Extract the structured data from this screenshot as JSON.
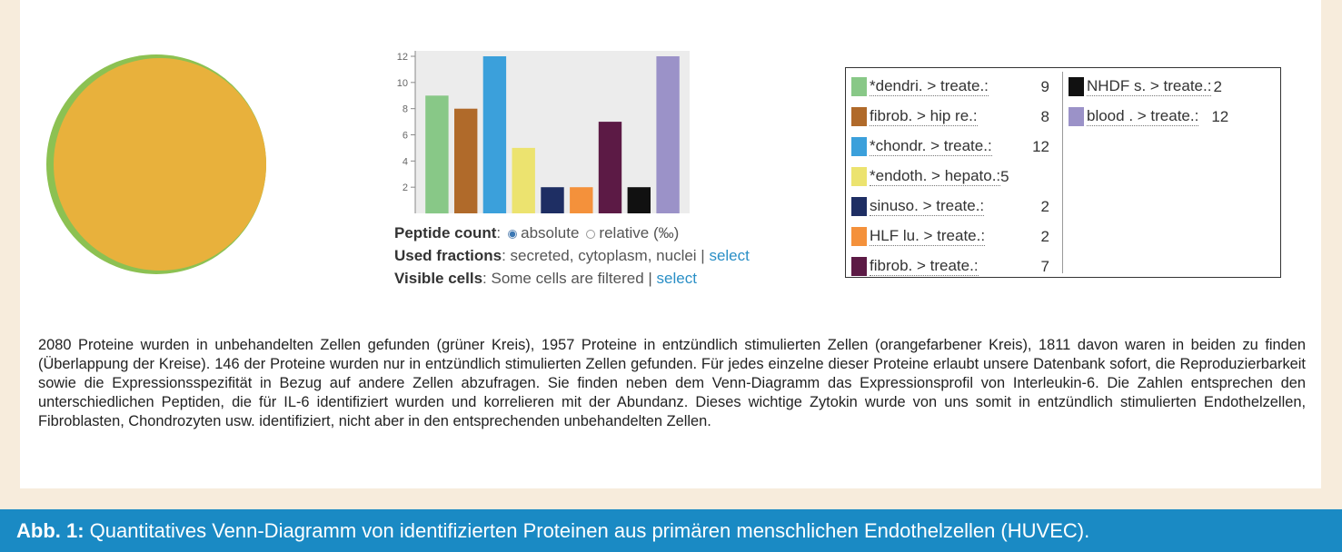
{
  "venn": {
    "green_color": "#8cc152",
    "orange_color": "#e8b13c"
  },
  "chart_data": {
    "type": "bar",
    "categories": [
      "*dendri. > treate.",
      "fibrob. > hip re.",
      "*chondr. > treate.",
      "*endoth. > hepato.",
      "sinuso. > treate.",
      "HLF lu. > treate.",
      "fibrob. > treate.",
      "NHDF s. > treate.",
      "blood . > treate."
    ],
    "values": [
      9,
      8,
      12,
      5,
      2,
      2,
      7,
      2,
      12
    ],
    "colors": [
      "#88c887",
      "#b06a2a",
      "#3ba0db",
      "#ece36f",
      "#1e2e63",
      "#f4913b",
      "#5c1a45",
      "#111111",
      "#9b92c8"
    ],
    "yticks": [
      2,
      4,
      6,
      8,
      10,
      12
    ],
    "ylim": [
      0,
      12
    ],
    "title": "",
    "xlabel": "",
    "ylabel": ""
  },
  "controls": {
    "peptide_label": "Peptide count",
    "peptide_colon": ":",
    "absolute": "absolute",
    "relative": "relative (‰)",
    "fractions_label": "Used fractions",
    "fractions_value": ": secreted, cytoplasm, nuclei | ",
    "fractions_link": "select",
    "cells_label": "Visible cells",
    "cells_value": ": Some cells are filtered | ",
    "cells_link": "select"
  },
  "legend": {
    "col1": [
      {
        "name": "*dendri. > treate.:",
        "value": "9",
        "color": "#88c887"
      },
      {
        "name": "fibrob. > hip re.:",
        "value": "8",
        "color": "#b06a2a"
      },
      {
        "name": "*chondr. > treate.:",
        "value": "12",
        "color": "#3ba0db"
      },
      {
        "name": "*endoth. > hepato.:",
        "value": "5",
        "color": "#ece36f"
      },
      {
        "name": "sinuso. > treate.:",
        "value": "2",
        "color": "#1e2e63"
      },
      {
        "name": "HLF lu. > treate.:",
        "value": "2",
        "color": "#f4913b"
      },
      {
        "name": "fibrob. > treate.:",
        "value": "7",
        "color": "#5c1a45"
      }
    ],
    "col2": [
      {
        "name": "NHDF s. > treate.:",
        "value": "2",
        "color": "#111111"
      },
      {
        "name": "blood . > treate.:",
        "value": "12",
        "color": "#9b92c8"
      }
    ]
  },
  "caption": "2080 Proteine wurden in unbehandelten Zellen gefunden (grüner Kreis), 1957 Proteine in entzündlich stimulierten Zellen (orangefarbener Kreis), 1811 davon waren in beiden zu finden (Überlappung der Kreise). 146 der Proteine wurden nur in entzündlich stimulierten Zellen gefunden. Für jedes einzelne dieser Proteine erlaubt unsere Datenbank sofort, die Reproduzierbarkeit sowie die Expressionsspezifität in Bezug auf andere Zellen abzufragen. Sie finden neben dem Venn-Diagramm das Expressionsprofil von Interleukin-6. Die Zahlen entsprechen den unterschiedlichen Peptiden, die für IL-6 identifiziert wurden und korrelieren mit der Abundanz. Dieses wichtige Zytokin wurde von uns somit in entzündlich stimulierten Endothelzellen, Fibroblasten, Chondrozyten usw. identifiziert, nicht aber in den entsprechenden unbehandelten Zellen.",
  "footer": {
    "label": "Abb. 1:",
    "text": " Quantitatives Venn-Diagramm von identifizierten Proteinen aus primären menschlichen Endothelzellen (HUVEC)."
  }
}
